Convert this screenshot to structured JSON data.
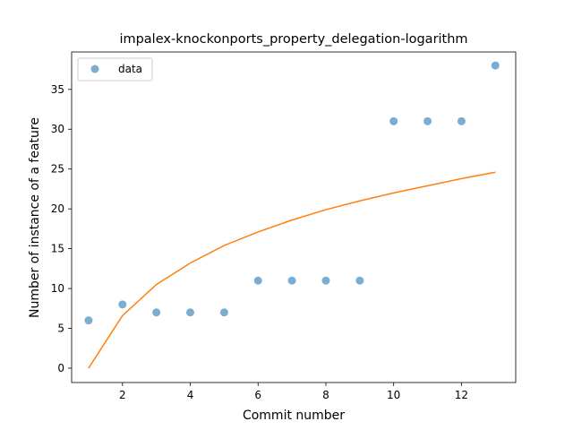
{
  "chart_data": {
    "type": "scatter",
    "title": "impalex-knockonports_property_delegation-logarithm",
    "xlabel": "Commit number",
    "ylabel": "Number of instance of a feature",
    "xlim": [
      0.5,
      13.6
    ],
    "ylim": [
      -1.8,
      39.7
    ],
    "xticks": [
      2,
      4,
      6,
      8,
      10,
      12
    ],
    "yticks": [
      0,
      5,
      10,
      15,
      20,
      25,
      30,
      35
    ],
    "grid": false,
    "legend_position": "top-left",
    "series": [
      {
        "name": "data",
        "kind": "scatter",
        "color": "#1f77b4",
        "x": [
          1,
          2,
          3,
          4,
          5,
          6,
          7,
          8,
          9,
          10,
          11,
          12,
          13
        ],
        "y": [
          6,
          8,
          7,
          7,
          7,
          11,
          11,
          11,
          11,
          31,
          31,
          31,
          38
        ]
      },
      {
        "kind": "line",
        "color": "#ff7f0e",
        "x": [
          1,
          2,
          3,
          4,
          5,
          6,
          7,
          8,
          9,
          10,
          11,
          12,
          13
        ],
        "y": [
          0,
          6.6,
          10.5,
          13.2,
          15.4,
          17.1,
          18.6,
          19.9,
          21.0,
          22.0,
          22.9,
          23.8,
          24.6
        ]
      }
    ]
  }
}
